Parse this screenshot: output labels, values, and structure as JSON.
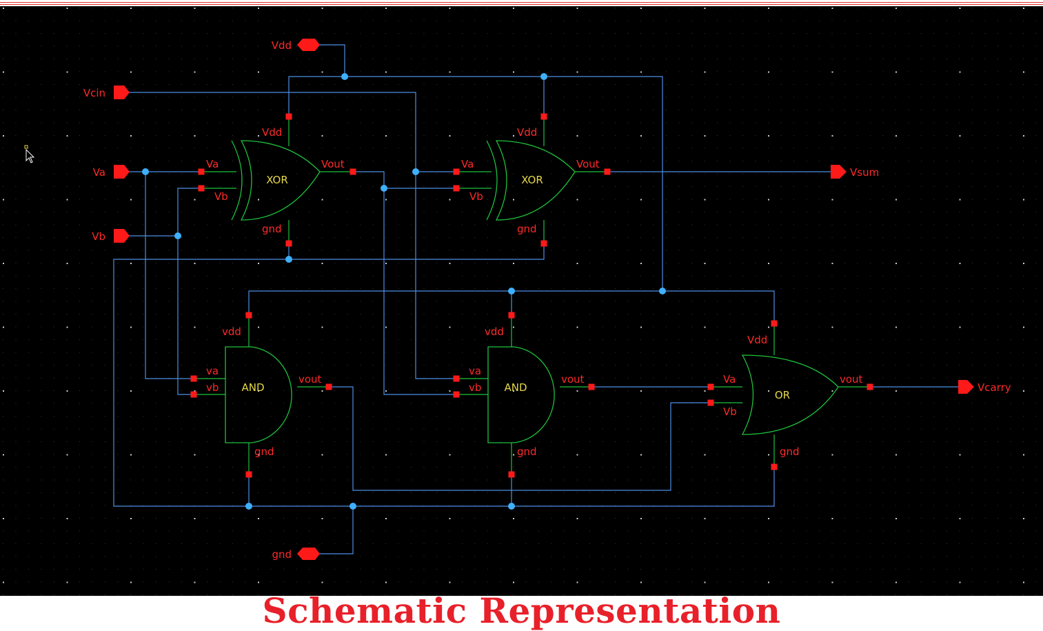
{
  "caption": "Schematic Representation",
  "colors": {
    "background": "#000000",
    "wire": "#4d8fe6",
    "gate_outline": "#1ec23c",
    "pin": "#ff1a1a",
    "pin_label": "#ff2a2a",
    "gate_label": "#e6d84a",
    "junction": "#3fb0ff",
    "caption": "#e8202a"
  },
  "ports": {
    "vdd": "Vdd",
    "vcin": "Vcin",
    "va": "Va",
    "vb": "Vb",
    "gnd": "gnd",
    "vsum": "Vsum",
    "vcarry": "Vcarry"
  },
  "gates": {
    "xor1": {
      "name": "XOR",
      "pins": {
        "vdd": "Vdd",
        "a": "Va",
        "b": "Vb",
        "out": "Vout",
        "gnd": "gnd"
      }
    },
    "xor2": {
      "name": "XOR",
      "pins": {
        "vdd": "Vdd",
        "a": "Va",
        "b": "Vb",
        "out": "Vout",
        "gnd": "gnd"
      }
    },
    "and1": {
      "name": "AND",
      "pins": {
        "vdd": "vdd",
        "a": "va",
        "b": "vb",
        "out": "vout",
        "gnd": "gnd"
      }
    },
    "and2": {
      "name": "AND",
      "pins": {
        "vdd": "vdd",
        "a": "va",
        "b": "vb",
        "out": "vout",
        "gnd": "gnd"
      }
    },
    "or1": {
      "name": "OR",
      "pins": {
        "vdd": "Vdd",
        "a": "Va",
        "b": "Vb",
        "out": "vout",
        "gnd": "gnd"
      }
    }
  }
}
